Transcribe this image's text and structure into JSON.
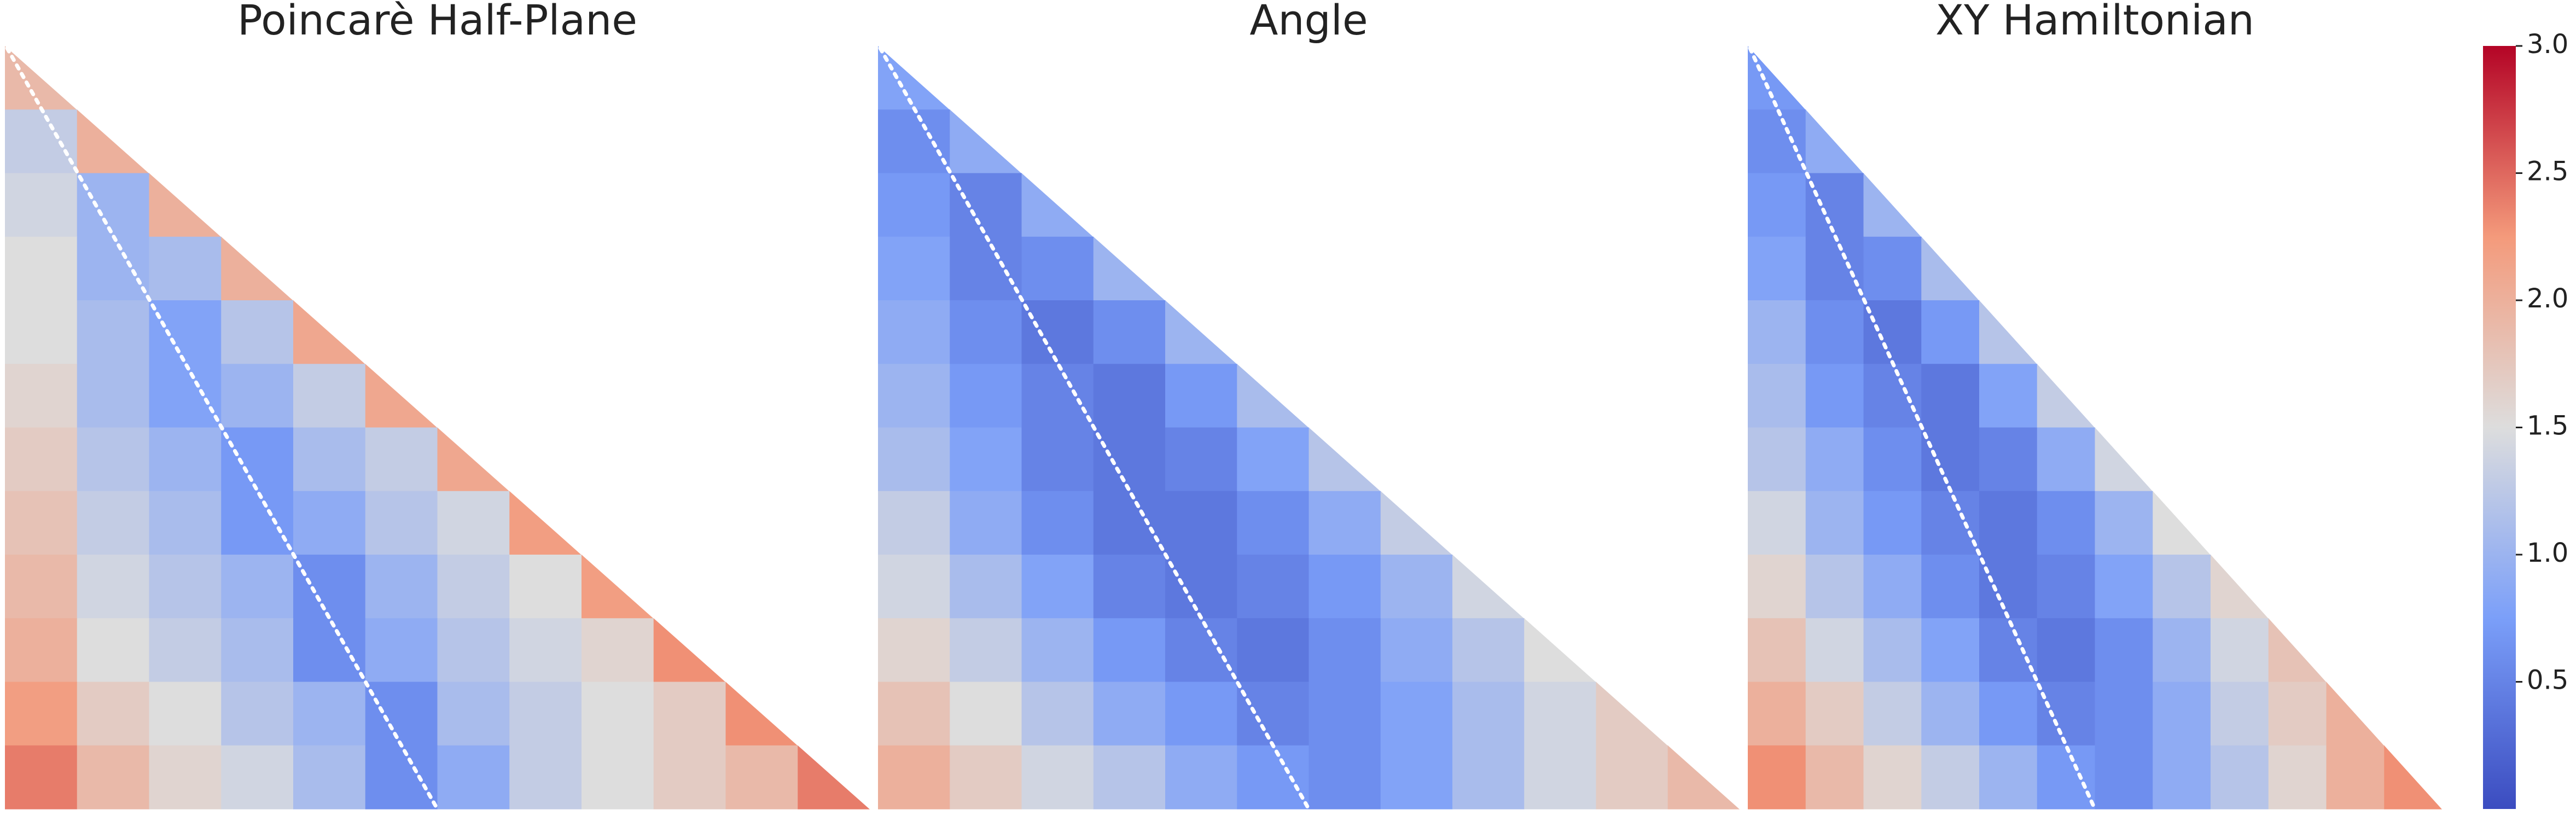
{
  "chart_data": [
    {
      "type": "heatmap",
      "title": "Poincarè Half-Plane",
      "values": [
        [
          1.9
        ],
        [
          1.3,
          2.0
        ],
        [
          1.4,
          1.0,
          2.0
        ],
        [
          1.5,
          1.0,
          1.1,
          2.0
        ],
        [
          1.5,
          1.1,
          0.8,
          1.2,
          2.1
        ],
        [
          1.6,
          1.1,
          0.8,
          1.0,
          1.3,
          2.1
        ],
        [
          1.7,
          1.2,
          1.0,
          0.7,
          1.1,
          1.3,
          2.1
        ],
        [
          1.8,
          1.3,
          1.1,
          0.7,
          0.9,
          1.2,
          1.4,
          2.2
        ],
        [
          1.9,
          1.4,
          1.2,
          1.0,
          0.6,
          1.0,
          1.3,
          1.5,
          2.2
        ],
        [
          2.0,
          1.5,
          1.3,
          1.1,
          0.6,
          0.9,
          1.2,
          1.4,
          1.6,
          2.3
        ],
        [
          2.2,
          1.7,
          1.5,
          1.2,
          1.0,
          0.6,
          1.1,
          1.3,
          1.5,
          1.7,
          2.3
        ],
        [
          2.4,
          1.9,
          1.6,
          1.4,
          1.1,
          0.6,
          0.9,
          1.3,
          1.5,
          1.7,
          1.9,
          2.4
        ]
      ]
    },
    {
      "type": "heatmap",
      "title": "Angle",
      "values": [
        [
          0.8
        ],
        [
          0.6,
          0.9
        ],
        [
          0.7,
          0.5,
          0.9
        ],
        [
          0.8,
          0.5,
          0.6,
          1.0
        ],
        [
          0.9,
          0.6,
          0.4,
          0.6,
          1.0
        ],
        [
          1.0,
          0.7,
          0.5,
          0.4,
          0.7,
          1.1
        ],
        [
          1.1,
          0.8,
          0.5,
          0.4,
          0.5,
          0.8,
          1.2
        ],
        [
          1.3,
          0.9,
          0.6,
          0.4,
          0.4,
          0.6,
          0.9,
          1.3
        ],
        [
          1.4,
          1.1,
          0.8,
          0.5,
          0.4,
          0.5,
          0.7,
          1.0,
          1.4
        ],
        [
          1.6,
          1.3,
          1.0,
          0.7,
          0.5,
          0.4,
          0.6,
          0.9,
          1.2,
          1.5
        ],
        [
          1.8,
          1.5,
          1.2,
          0.9,
          0.7,
          0.5,
          0.6,
          0.8,
          1.1,
          1.4,
          1.7
        ],
        [
          2.0,
          1.7,
          1.4,
          1.2,
          0.9,
          0.7,
          0.6,
          0.8,
          1.1,
          1.4,
          1.7,
          1.9
        ]
      ]
    },
    {
      "type": "heatmap",
      "title": "XY Hamiltonian",
      "values": [
        [
          0.7
        ],
        [
          0.6,
          0.9
        ],
        [
          0.7,
          0.5,
          1.0
        ],
        [
          0.8,
          0.5,
          0.6,
          1.1
        ],
        [
          1.0,
          0.6,
          0.4,
          0.7,
          1.2
        ],
        [
          1.1,
          0.7,
          0.5,
          0.4,
          0.8,
          1.3
        ],
        [
          1.2,
          0.9,
          0.6,
          0.4,
          0.5,
          0.9,
          1.4
        ],
        [
          1.4,
          1.0,
          0.7,
          0.5,
          0.4,
          0.6,
          1.0,
          1.5
        ],
        [
          1.6,
          1.2,
          0.9,
          0.6,
          0.4,
          0.5,
          0.8,
          1.2,
          1.6
        ],
        [
          1.8,
          1.4,
          1.1,
          0.8,
          0.5,
          0.4,
          0.6,
          1.0,
          1.4,
          1.8
        ],
        [
          2.0,
          1.7,
          1.3,
          1.0,
          0.7,
          0.5,
          0.6,
          0.9,
          1.3,
          1.7,
          2.0
        ],
        [
          2.3,
          1.9,
          1.6,
          1.3,
          1.0,
          0.7,
          0.6,
          0.9,
          1.2,
          1.6,
          2.0,
          2.3
        ]
      ]
    },
    {
      "type": "colorbar",
      "colormap": [
        "#3b4cc0",
        "#7b9ff9",
        "#dddddd",
        "#f49a7b",
        "#b40426"
      ],
      "ylim": [
        0,
        3
      ],
      "yticks": [
        0.5,
        {
          "value": 1,
          "label": "1.0"
        },
        1.5,
        {
          "value": 2,
          "label": "2.0"
        },
        2.5,
        {
          "value": 3,
          "label": "3.0"
        }
      ]
    }
  ]
}
